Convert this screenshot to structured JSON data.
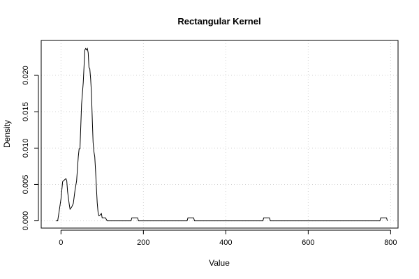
{
  "chart_data": {
    "type": "line",
    "title": "Rectangular Kernel",
    "xlabel": "Value",
    "ylabel": "Density",
    "xlim": [
      -48,
      818
    ],
    "ylim": [
      -0.001,
      0.0248
    ],
    "x_ticks": [
      0,
      200,
      400,
      600,
      800
    ],
    "x_tick_labels": [
      "0",
      "200",
      "400",
      "600",
      "800"
    ],
    "y_ticks": [
      0,
      0.005,
      0.01,
      0.015,
      0.02
    ],
    "y_tick_labels": [
      "0.000",
      "0.005",
      "0.010",
      "0.015",
      "0.020"
    ],
    "grid": true,
    "legend": "none",
    "line_color": "#000000",
    "grid_color": "#d3d3d3",
    "series": [
      {
        "x": [
          -12,
          -8,
          -4,
          0,
          4,
          8,
          12,
          14,
          16,
          18,
          20,
          22,
          26,
          30,
          34,
          38,
          42,
          44,
          46,
          50,
          54,
          58,
          60,
          62,
          64,
          66,
          68,
          70,
          72,
          74,
          76,
          78,
          80,
          82,
          84,
          86,
          88,
          90,
          92,
          95,
          98,
          100,
          104,
          108,
          112,
          170,
          172,
          186,
          188,
          306,
          308,
          322,
          324,
          490,
          492,
          506,
          508,
          774,
          776,
          790,
          792
        ],
        "y": [
          0,
          0,
          0.0015,
          0.003,
          0.0054,
          0.0056,
          0.0058,
          0.0055,
          0.004,
          0.0032,
          0.0023,
          0.0016,
          0.0019,
          0.0024,
          0.0042,
          0.0055,
          0.0088,
          0.0099,
          0.0099,
          0.016,
          0.019,
          0.0235,
          0.0237,
          0.0235,
          0.0237,
          0.0231,
          0.0211,
          0.0209,
          0.0195,
          0.0175,
          0.0138,
          0.0108,
          0.0095,
          0.0088,
          0.0068,
          0.0045,
          0.0025,
          0.0012,
          0.0007,
          0.0008,
          0.001,
          0.0004,
          0.0004,
          0.0004,
          0,
          0,
          0.0004,
          0.0004,
          0,
          0,
          0.0004,
          0.0004,
          0,
          0,
          0.0004,
          0.0004,
          0,
          0,
          0.0004,
          0.0004,
          0
        ]
      }
    ]
  }
}
